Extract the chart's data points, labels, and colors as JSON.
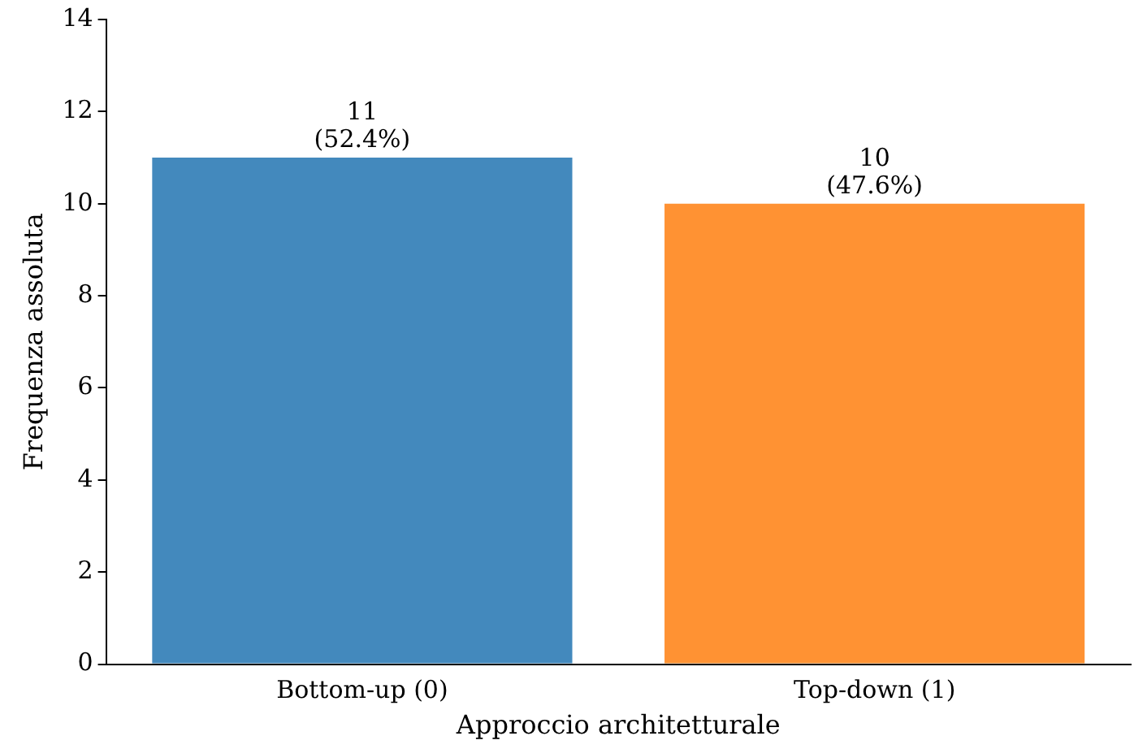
{
  "chart_data": {
    "type": "bar",
    "xlabel": "Approccio architetturale",
    "ylabel": "Frequenza assoluta",
    "categories": [
      "Bottom-up (0)",
      "Top-down (1)"
    ],
    "values": [
      11,
      10
    ],
    "colors": [
      "#4389bd",
      "#ff9233"
    ],
    "value_labels": [
      "11\n(52.4%)",
      "10\n(47.6%)"
    ],
    "ylim": [
      0,
      14
    ],
    "yticks": [
      0,
      2,
      4,
      6,
      8,
      10,
      12,
      14
    ],
    "grid": false,
    "legend": false
  }
}
